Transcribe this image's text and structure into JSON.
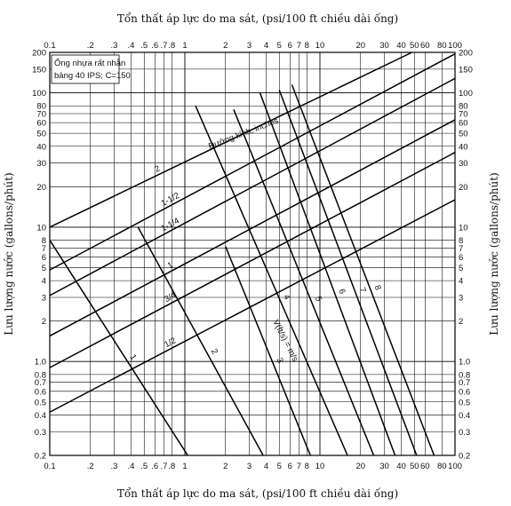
{
  "chart_data": {
    "type": "line",
    "title_top": "Tổn thất áp lực do ma sát, (psi/100 ft chiều dài ống)",
    "xlabel": "Tổn thất áp lực do ma sát, (psi/100 ft chiều dài ống)",
    "ylabel": "Lưu lượng nước (gallons/phút)",
    "xscale": "log",
    "yscale": "log",
    "xlim": [
      0.1,
      100
    ],
    "ylim": [
      0.2,
      200
    ],
    "x_ticks": [
      0.1,
      0.2,
      0.3,
      0.4,
      0.5,
      0.6,
      0.7,
      0.8,
      1,
      2,
      3,
      4,
      5,
      6,
      7,
      8,
      10,
      20,
      30,
      40,
      50,
      60,
      80,
      100
    ],
    "x_tick_labels": [
      "0.1",
      ".2",
      ".3",
      ".4",
      ".5",
      ".6",
      ".7",
      ".8",
      "1",
      "2",
      "3",
      "4",
      "5",
      "6",
      "7",
      "8",
      "10",
      "20",
      "30",
      "40",
      "50",
      "60",
      "80",
      "100"
    ],
    "y_ticks": [
      0.2,
      0.3,
      0.4,
      0.5,
      0.6,
      0.7,
      0.8,
      1,
      2,
      3,
      4,
      5,
      6,
      7,
      8,
      10,
      20,
      30,
      40,
      50,
      60,
      70,
      80,
      100,
      150,
      200
    ],
    "y_tick_labels": [
      "0.2",
      "0.3",
      "0.4",
      "0.5",
      "0.6",
      "0.7",
      "0.8",
      "1.0",
      "2",
      "3",
      "4",
      "5",
      "6",
      "7",
      "8",
      "10",
      "20",
      "30",
      "40",
      "50",
      "60",
      "70",
      "80",
      "100",
      "150",
      "200"
    ],
    "note_lines": [
      "Ống nhựa rất nhẵn",
      "bảng 40 IPS; C=150"
    ],
    "diameter_label": "Đường kính, inches",
    "velocity_label": "V(ft/s) = m/s",
    "grid": true,
    "series_diameter": [
      {
        "name": "1/2",
        "points": [
          [
            0.1,
            0.42
          ],
          [
            100,
            16
          ]
        ]
      },
      {
        "name": "3/4",
        "points": [
          [
            0.1,
            0.9
          ],
          [
            100,
            36
          ]
        ]
      },
      {
        "name": "1",
        "points": [
          [
            0.1,
            1.55
          ],
          [
            100,
            63
          ]
        ]
      },
      {
        "name": "1-1/4",
        "points": [
          [
            0.1,
            3.1
          ],
          [
            100,
            128
          ]
        ]
      },
      {
        "name": "1-1/2",
        "points": [
          [
            0.1,
            4.8
          ],
          [
            100,
            195
          ]
        ]
      },
      {
        "name": "2",
        "points": [
          [
            0.1,
            10
          ],
          [
            48,
            200
          ]
        ]
      }
    ],
    "series_velocity": [
      {
        "name": "1",
        "points": [
          [
            0.1,
            8
          ],
          [
            1.05,
            0.2
          ]
        ]
      },
      {
        "name": "2",
        "points": [
          [
            0.45,
            10
          ],
          [
            3.8,
            0.2
          ]
        ]
      },
      {
        "name": "3",
        "points": [
          [
            2,
            7.2
          ],
          [
            8.5,
            0.2
          ]
        ]
      },
      {
        "name": "4",
        "points": [
          [
            1.2,
            80
          ],
          [
            16,
            0.2
          ]
        ]
      },
      {
        "name": "5",
        "points": [
          [
            2.3,
            75
          ],
          [
            25,
            0.2
          ]
        ]
      },
      {
        "name": "6",
        "points": [
          [
            3.6,
            100
          ],
          [
            36,
            0.2
          ]
        ]
      },
      {
        "name": "7",
        "points": [
          [
            5,
            105
          ],
          [
            52,
            0.2
          ]
        ]
      },
      {
        "name": "8",
        "points": [
          [
            6.2,
            115
          ],
          [
            70,
            0.2
          ]
        ]
      }
    ],
    "label_positions": {
      "diameter": [
        [
          0.3,
          0.92
        ],
        [
          0.4,
          1.22
        ],
        [
          0.25,
          22.3
        ],
        [
          0.2,
          48
        ],
        [
          0.2,
          90.5
        ]
      ]
    }
  }
}
